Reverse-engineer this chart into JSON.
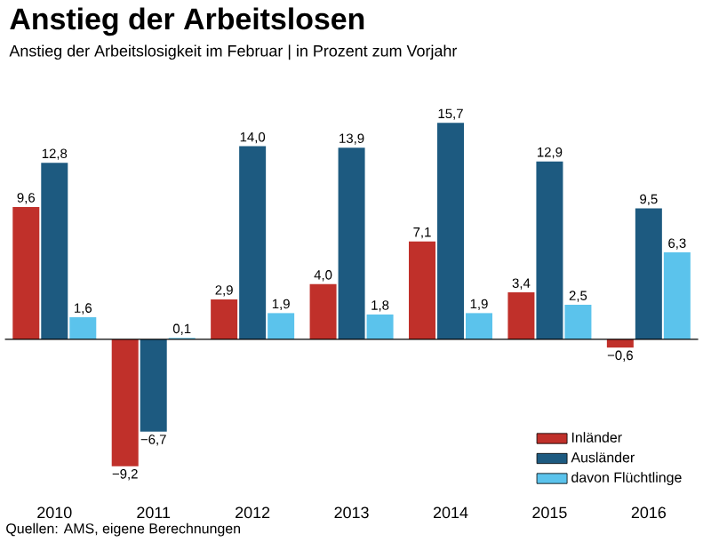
{
  "chart_data": {
    "type": "bar",
    "title": "Anstieg der Arbeitslosen",
    "subtitle": "Anstieg der Arbeitslosigkeit im Februar | in Prozent zum Vorjahr",
    "categories": [
      "2010",
      "2011",
      "2012",
      "2013",
      "2014",
      "2015",
      "2016"
    ],
    "series": [
      {
        "name": "Inländer",
        "color": "#c0302a",
        "values": [
          9.6,
          -9.2,
          2.9,
          4.0,
          7.1,
          3.4,
          -0.6
        ],
        "value_labels": [
          "9,6",
          "−9,2",
          "2,9",
          "4,0",
          "7,1",
          "3,4",
          "−0,6"
        ]
      },
      {
        "name": "Ausländer",
        "color": "#1d5a80",
        "values": [
          12.8,
          -6.7,
          14.0,
          13.9,
          15.7,
          12.9,
          9.5
        ],
        "value_labels": [
          "12,8",
          "−6,7",
          "14,0",
          "13,9",
          "15,7",
          "12,9",
          "9,5"
        ]
      },
      {
        "name": "davon Flüchtlinge",
        "color": "#5bc3ec",
        "values": [
          1.6,
          0.1,
          1.9,
          1.8,
          1.9,
          2.5,
          6.3
        ],
        "value_labels": [
          "1,6",
          "0,1",
          "1,9",
          "1,8",
          "1,9",
          "2,5",
          "6,3"
        ]
      }
    ],
    "legend": "bottom right",
    "annotations": [
      "Quellen: AMS, eigene Berechnungen"
    ]
  }
}
